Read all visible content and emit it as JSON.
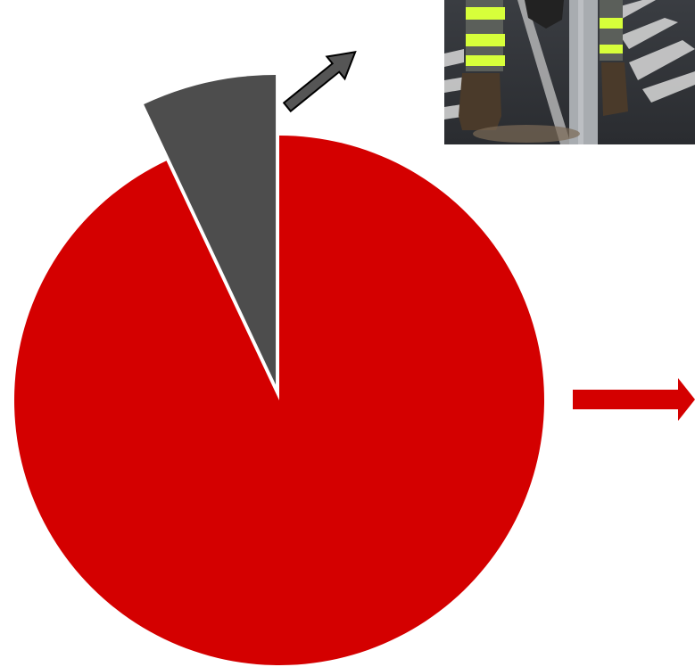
{
  "chart_data": {
    "type": "pie",
    "slices": [
      {
        "value": 93,
        "color": "#d40000",
        "exploded": false
      },
      {
        "value": 7,
        "color": "#4d4d4d",
        "exploded": true
      }
    ],
    "start_angle_deg": 0,
    "direction": "clockwise",
    "legend": "none"
  },
  "decorations": {
    "photo_subject": "worker-installing-road-post-photo",
    "arrow_gray_color": "#555555",
    "arrow_red_color": "#d40000"
  }
}
